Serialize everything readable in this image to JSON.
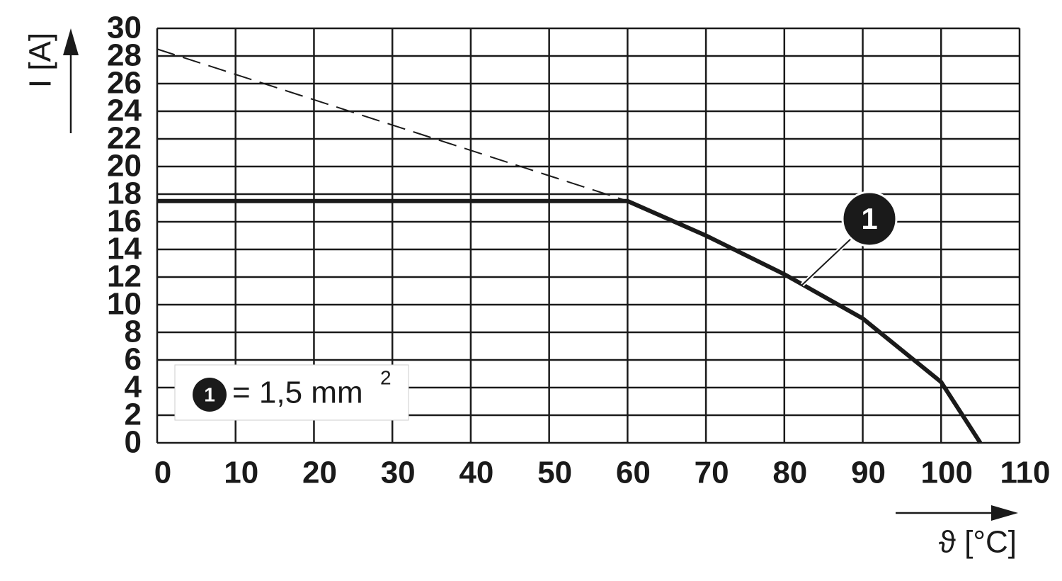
{
  "chart_data": {
    "type": "line",
    "x_label": "ϑ [°C]",
    "y_label": "I [A]",
    "xlim": [
      0,
      110
    ],
    "xticks": [
      0,
      10,
      20,
      30,
      40,
      50,
      60,
      70,
      80,
      90,
      100,
      110
    ],
    "ylim": [
      0,
      30
    ],
    "yticks": [
      0,
      2,
      4,
      6,
      8,
      10,
      12,
      14,
      16,
      18,
      20,
      22,
      24,
      26,
      28,
      30
    ],
    "grid": true,
    "series": [
      {
        "name": "1",
        "color": "#1a1a1a",
        "style": "solid",
        "x": [
          0,
          60,
          70,
          80,
          90,
          100,
          105
        ],
        "values": [
          17.5,
          17.5,
          15,
          12.2,
          9,
          4.4,
          0
        ]
      },
      {
        "color": "#1a1a1a",
        "style": "dashed",
        "x": [
          0,
          60
        ],
        "values": [
          28.5,
          17.5
        ]
      }
    ],
    "legend": {
      "marker": "1",
      "text": "= 1,5 mm",
      "superscript": "2"
    }
  }
}
